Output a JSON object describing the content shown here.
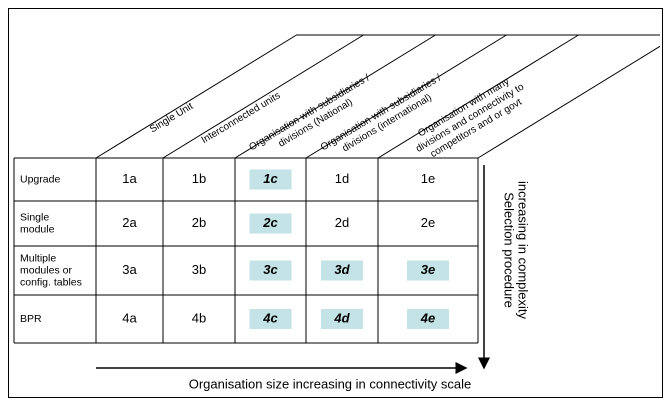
{
  "columns": [
    [
      "Single Unit"
    ],
    [
      "Interconnected units"
    ],
    [
      "Organisation with subsidiaries /",
      "divisions (National)"
    ],
    [
      "Organisation with subsidiaries /",
      "divisions (international)"
    ],
    [
      "Organisation with many",
      "divisions and connectivity to",
      "competitors and or govt"
    ]
  ],
  "rows": [
    {
      "label": [
        "Upgrade"
      ],
      "cells": [
        "1a",
        "1b",
        "1c",
        "1d",
        "1e"
      ]
    },
    {
      "label": [
        "Single",
        "module"
      ],
      "cells": [
        "2a",
        "2b",
        "2c",
        "2d",
        "2e"
      ]
    },
    {
      "label": [
        "Multiple",
        "modules or",
        "config. tables"
      ],
      "cells": [
        "3a",
        "3b",
        "3c",
        "3d",
        "3e"
      ]
    },
    {
      "label": [
        "BPR"
      ],
      "cells": [
        "4a",
        "4b",
        "4c",
        "4d",
        "4e"
      ]
    }
  ],
  "vertical_axis_label": [
    "Selection procedure",
    "increasing in complexity"
  ],
  "horizontal_axis_label": "Organisation size increasing in connectivity scale"
}
